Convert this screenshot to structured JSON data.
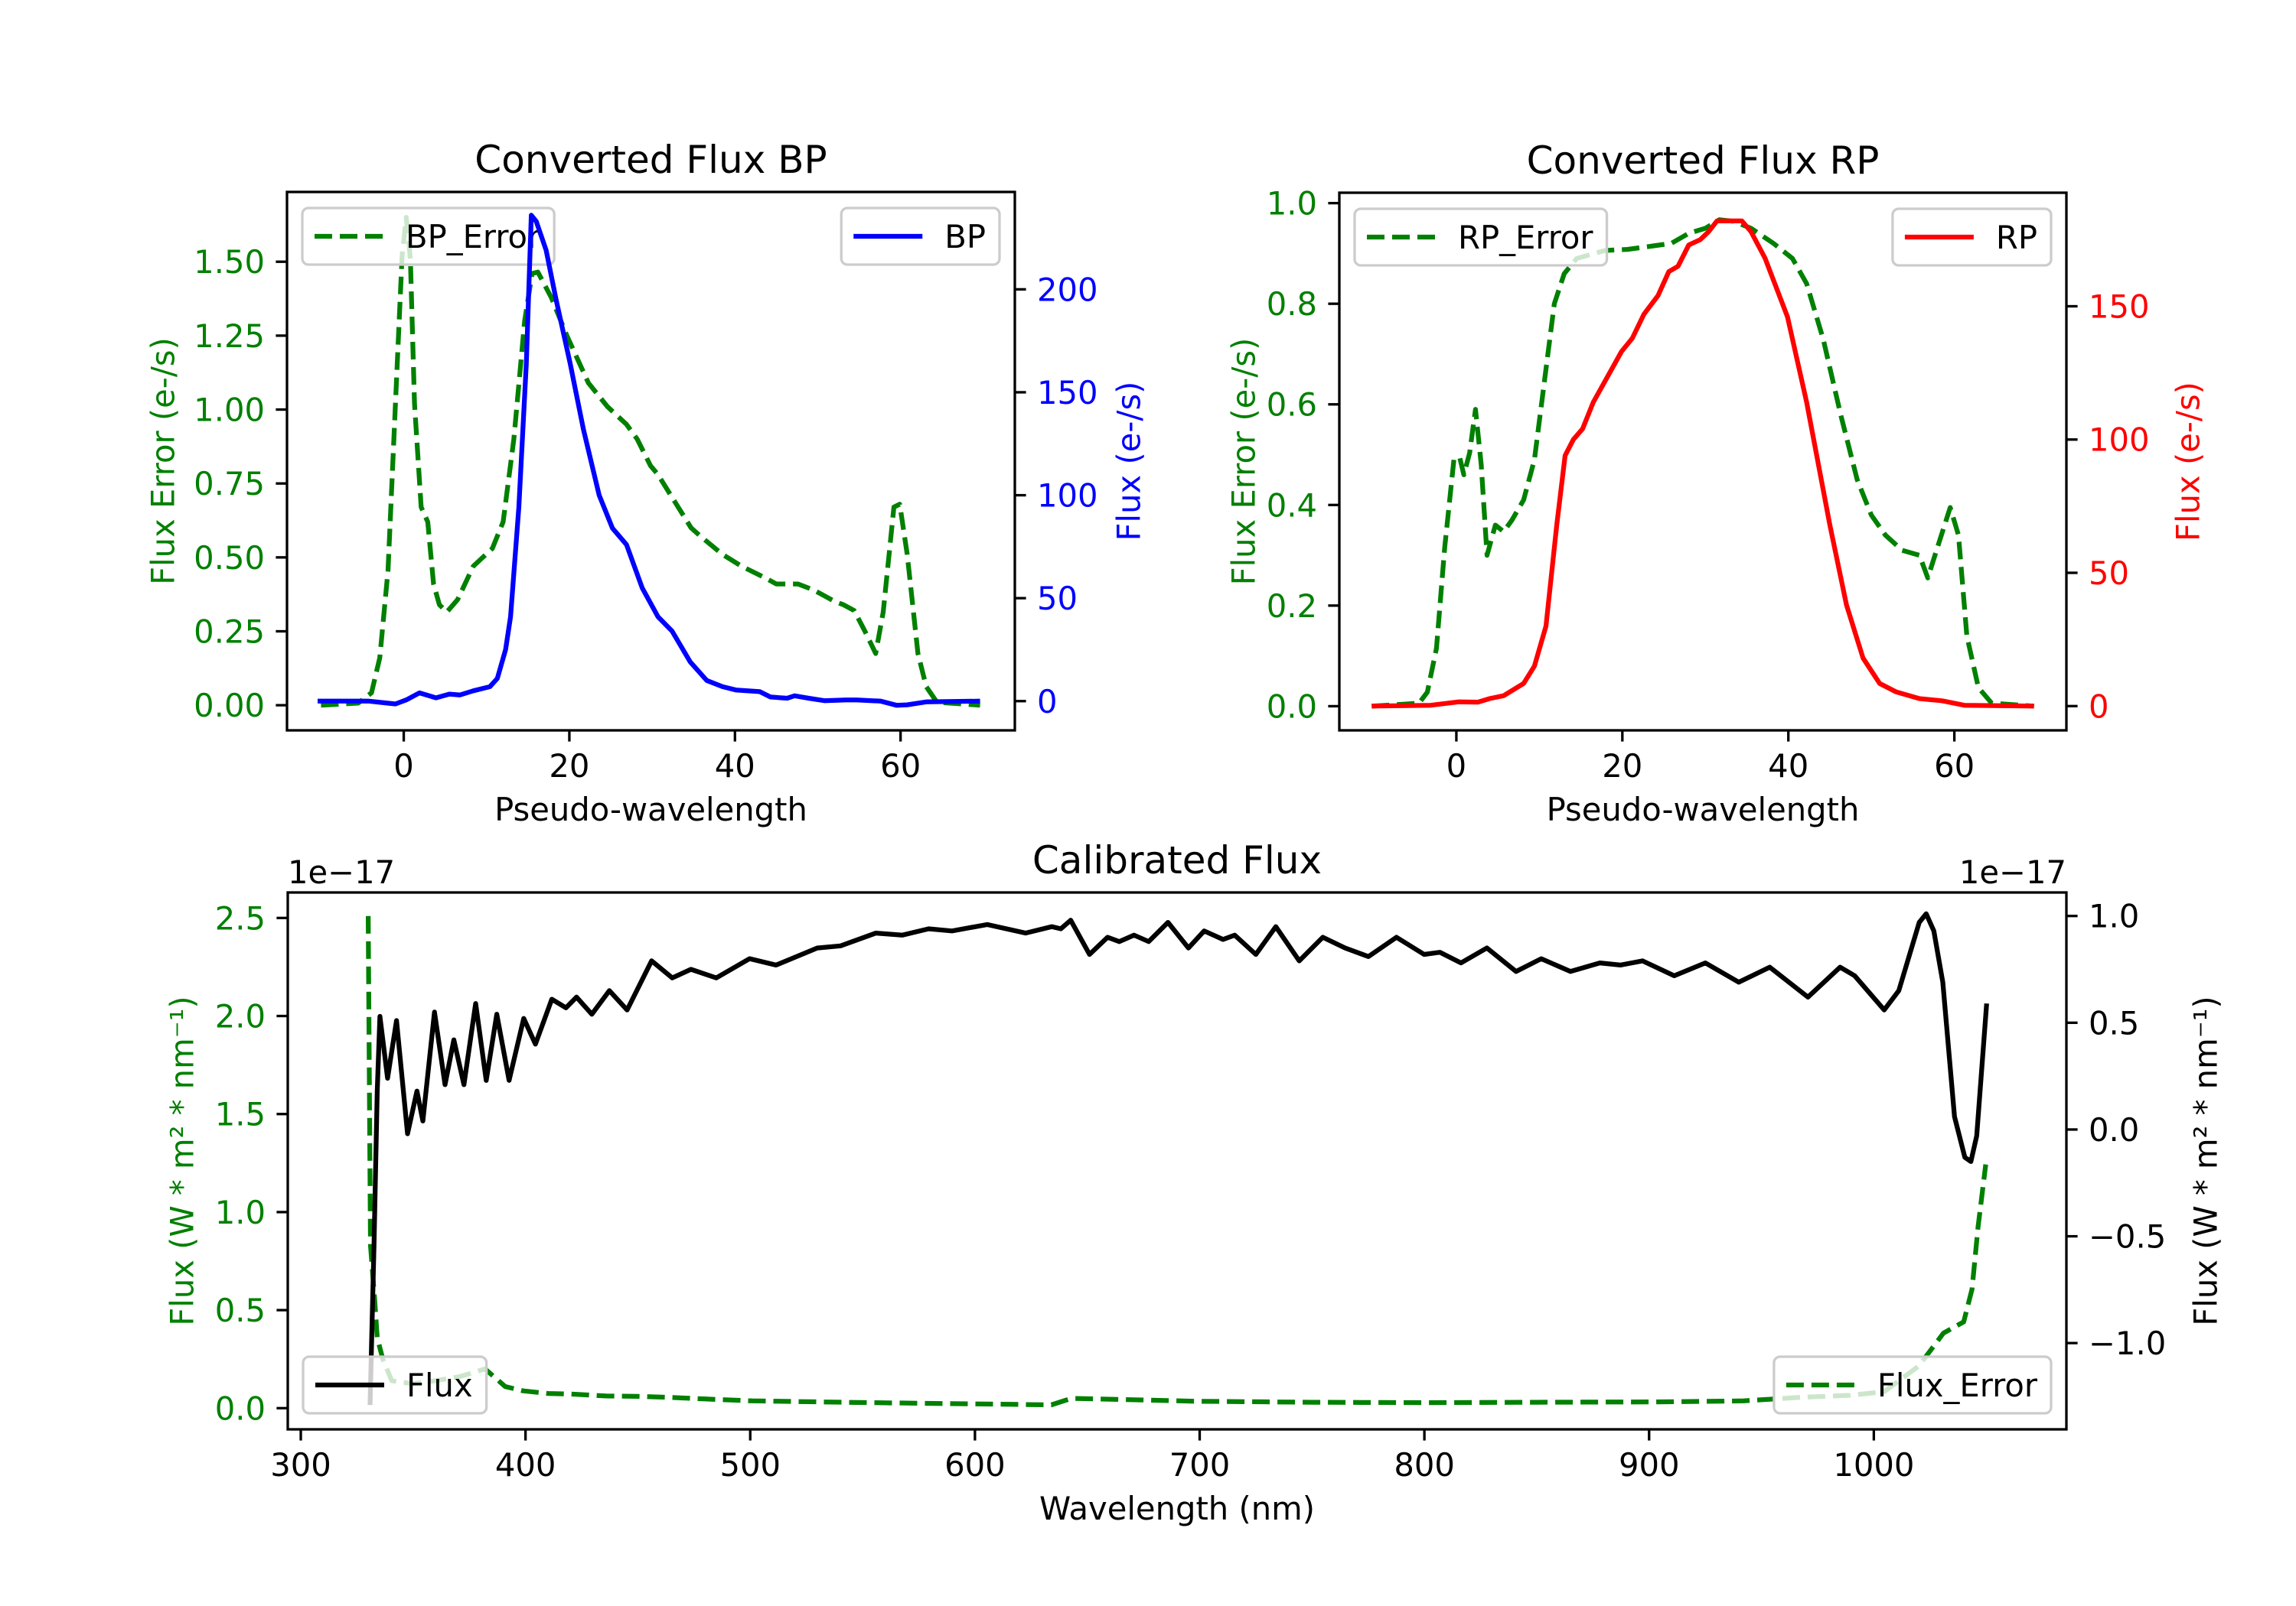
{
  "chart_data": [
    {
      "type": "line",
      "title": "Converted Flux BP",
      "xlabel": "Pseudo-wavelength",
      "xlim": [
        -14.1,
        73.8
      ],
      "xticks": [
        0,
        20,
        40,
        60
      ],
      "xtick_labels": [
        "0",
        "20",
        "40",
        "60"
      ],
      "left_axis": {
        "label": "Flux Error (e-/s)",
        "color": "#008000",
        "ylim": [
          -0.085,
          1.736
        ],
        "ticks": [
          0,
          0.25,
          0.5,
          0.75,
          1.0,
          1.25,
          1.5
        ],
        "tick_labels": [
          "0.00",
          "0.25",
          "0.50",
          "0.75",
          "1.00",
          "1.25",
          "1.50"
        ]
      },
      "right_axis": {
        "label": "Flux (e-/s)",
        "color": "#0000ff",
        "ylim": [
          -14.2,
          247.3
        ],
        "ticks": [
          0,
          50,
          100,
          150,
          200
        ],
        "tick_labels": [
          "0",
          "50",
          "100",
          "150",
          "200"
        ]
      },
      "series": [
        {
          "name": "BP_Error",
          "axis": "left",
          "color": "#008000",
          "style": "dashed",
          "legend_loc": "upper left",
          "x": [
            -10,
            -5.5,
            -3.9,
            -2.9,
            -1.9,
            -1,
            -0.2,
            0.3,
            0.8,
            1.3,
            2.1,
            2.9,
            3.6,
            4.3,
            5.2,
            6.5,
            8.4,
            10.7,
            12,
            13.3,
            14.6,
            15.5,
            16.2,
            17.8,
            19.7,
            22.3,
            24.6,
            26.9,
            28.2,
            29.8,
            30.7,
            32.7,
            34.7,
            35.9,
            38.5,
            40.8,
            43.7,
            45,
            47.6,
            49.5,
            52.1,
            53.1,
            54.4,
            55.7,
            57,
            57.9,
            59.2,
            59.9,
            60.8,
            62.1,
            63.1,
            64.4,
            69.6
          ],
          "y": [
            0,
            0.007,
            0.042,
            0.16,
            0.456,
            1.02,
            1.52,
            1.65,
            1.51,
            1.02,
            0.67,
            0.62,
            0.41,
            0.34,
            0.315,
            0.357,
            0.47,
            0.53,
            0.62,
            0.9,
            1.3,
            1.46,
            1.465,
            1.38,
            1.25,
            1.09,
            1.01,
            0.95,
            0.9,
            0.81,
            0.78,
            0.69,
            0.6,
            0.57,
            0.51,
            0.47,
            0.43,
            0.41,
            0.41,
            0.39,
            0.35,
            0.34,
            0.32,
            0.25,
            0.175,
            0.315,
            0.67,
            0.68,
            0.51,
            0.175,
            0.063,
            0.01,
            0
          ]
        },
        {
          "name": "BP",
          "axis": "right",
          "color": "#0000ff",
          "style": "solid",
          "legend_loc": "upper right",
          "x": [
            -10.4,
            -4.2,
            -1,
            0.3,
            1.9,
            3.9,
            5.5,
            6.8,
            8.4,
            10.4,
            11.3,
            12.3,
            12.9,
            13.9,
            14.8,
            15.4,
            16,
            17.2,
            18.4,
            20.1,
            21.7,
            23.6,
            25.2,
            26.9,
            28.8,
            30.7,
            32.4,
            34.6,
            36.6,
            38.5,
            40.1,
            43,
            44.3,
            46.3,
            47.2,
            48.9,
            50.8,
            53.4,
            54.7,
            57.6,
            59.5,
            60.8,
            63.1,
            69.6
          ],
          "y": [
            0,
            0,
            -1.4,
            0.6,
            4,
            1.6,
            3.4,
            3,
            5,
            7,
            11,
            25,
            41,
            94,
            164,
            236,
            233,
            219,
            195,
            164,
            132,
            100,
            84,
            76,
            55,
            41,
            34,
            19,
            10,
            7,
            5.4,
            4.6,
            2,
            1.4,
            2.6,
            1.4,
            0.2,
            0.6,
            0.6,
            0,
            -2,
            -1.8,
            -0.4,
            0
          ]
        }
      ]
    },
    {
      "type": "line",
      "title": "Converted Flux RP",
      "xlabel": "Pseudo-wavelength",
      "xlim": [
        -14.1,
        73.5
      ],
      "xticks": [
        0,
        20,
        40,
        60
      ],
      "xtick_labels": [
        "0",
        "20",
        "40",
        "60"
      ],
      "left_axis": {
        "label": "Flux Error (e-/s)",
        "color": "#008000",
        "ylim": [
          -0.048,
          1.0207
        ],
        "ticks": [
          0,
          0.2,
          0.4,
          0.6,
          0.8,
          1.0
        ],
        "tick_labels": [
          "0.0",
          "0.2",
          "0.4",
          "0.6",
          "0.8",
          "1.0"
        ]
      },
      "right_axis": {
        "label": "Flux (e-/s)",
        "color": "#ff0000",
        "ylim": [
          -9.1,
          192.6
        ],
        "ticks": [
          0,
          50,
          100,
          150
        ],
        "tick_labels": [
          "0",
          "50",
          "100",
          "150"
        ]
      },
      "series": [
        {
          "name": "RP_Error",
          "axis": "left",
          "color": "#008000",
          "style": "dashed",
          "legend_loc": "upper left",
          "x": [
            -10.2,
            -4.5,
            -3.5,
            -2.4,
            -1.4,
            -0.3,
            0.4,
            0.9,
            1.6,
            2.3,
            3,
            3.7,
            4.7,
            5.7,
            6.7,
            8.1,
            9.4,
            10.8,
            11.8,
            13,
            14.5,
            17.9,
            20.6,
            23.3,
            25.9,
            28,
            30,
            31.7,
            33.4,
            35.5,
            38.2,
            40.5,
            42.2,
            44.2,
            46.3,
            48.3,
            50,
            51.7,
            53.7,
            55.8,
            56.8,
            57.8,
            59.5,
            60.5,
            61.5,
            62.9,
            64.5,
            69.6
          ],
          "y": [
            0,
            0.006,
            0.028,
            0.115,
            0.316,
            0.49,
            0.495,
            0.46,
            0.504,
            0.59,
            0.48,
            0.3,
            0.36,
            0.347,
            0.37,
            0.41,
            0.49,
            0.67,
            0.8,
            0.86,
            0.89,
            0.906,
            0.908,
            0.914,
            0.92,
            0.94,
            0.95,
            0.967,
            0.964,
            0.95,
            0.92,
            0.89,
            0.84,
            0.73,
            0.58,
            0.45,
            0.38,
            0.34,
            0.31,
            0.3,
            0.255,
            0.307,
            0.395,
            0.34,
            0.14,
            0.037,
            0.006,
            0
          ]
        },
        {
          "name": "RP",
          "axis": "right",
          "color": "#ff0000",
          "style": "solid",
          "legend_loc": "upper right",
          "x": [
            -10.2,
            -3.1,
            0.3,
            2.6,
            4,
            5.7,
            8.1,
            9.4,
            10.8,
            12.1,
            13.1,
            14.1,
            15.2,
            16.5,
            19.9,
            21.2,
            22.6,
            24.3,
            25.6,
            26.7,
            28,
            29.4,
            30.4,
            31.4,
            33.1,
            34.4,
            35.5,
            37.2,
            39.9,
            42.2,
            45,
            47,
            49,
            51,
            53,
            55.8,
            58.5,
            61.2,
            69.6
          ],
          "y": [
            0,
            0.3,
            1.6,
            1.5,
            2.8,
            3.9,
            8.5,
            15,
            30,
            68,
            94,
            100,
            104,
            114,
            133,
            138,
            147,
            154,
            163,
            165,
            173,
            175,
            178,
            182,
            182,
            182,
            178,
            168,
            146,
            114,
            68,
            38,
            18,
            8.5,
            5.3,
            2.8,
            2,
            0.3,
            0
          ]
        }
      ]
    },
    {
      "type": "line",
      "title": "Calibrated Flux",
      "xlabel": "Wavelength (nm)",
      "xlim": [
        294.2,
        1085.7
      ],
      "xticks": [
        300,
        400,
        500,
        600,
        700,
        800,
        900,
        1000
      ],
      "xtick_labels": [
        "300",
        "400",
        "500",
        "600",
        "700",
        "800",
        "900",
        "1000"
      ],
      "left_axis": {
        "label": "Flux (W * m² * nm⁻¹)",
        "color": "#008000",
        "offset_text": "1e−17",
        "ylim": [
          -0.108,
          2.63
        ],
        "ticks": [
          0,
          0.5,
          1.0,
          1.5,
          2.0,
          2.5
        ],
        "tick_labels": [
          "0.0",
          "0.5",
          "1.0",
          "1.5",
          "2.0",
          "2.5"
        ]
      },
      "right_axis": {
        "label": "Flux (W * m² * nm⁻¹)",
        "color": "#000000",
        "offset_text": "1e−17",
        "ylim": [
          -1.404,
          1.11
        ],
        "ticks": [
          -1.0,
          -0.5,
          0,
          0.5,
          1.0
        ],
        "tick_labels": [
          "−1.0",
          "−0.5",
          "0.0",
          "0.5",
          "1.0"
        ]
      },
      "series": [
        {
          "name": "Flux_Error",
          "axis": "left",
          "color": "#008000",
          "style": "dashed",
          "legend_loc": "lower right",
          "x": [
            330,
            331,
            332.9,
            334,
            336.5,
            340.5,
            349.6,
            360,
            370.5,
            382,
            391,
            399,
            410,
            420,
            436,
            450,
            462,
            480,
            501,
            553,
            600,
            634,
            643,
            699,
            750,
            799,
            850,
            903,
            942,
            968,
            989,
            1004.6,
            1020,
            1031,
            1040,
            1043.7,
            1046.4,
            1049.8
          ],
          "y": [
            2.51,
            0.83,
            0.55,
            0.36,
            0.25,
            0.14,
            0.125,
            0.14,
            0.16,
            0.2,
            0.11,
            0.088,
            0.075,
            0.072,
            0.062,
            0.06,
            0.056,
            0.047,
            0.037,
            0.028,
            0.022,
            0.017,
            0.05,
            0.035,
            0.03,
            0.028,
            0.03,
            0.032,
            0.037,
            0.056,
            0.065,
            0.084,
            0.215,
            0.383,
            0.44,
            0.607,
            0.925,
            1.243
          ]
        },
        {
          "name": "Flux",
          "axis": "right",
          "color": "#000000",
          "style": "solid",
          "legend_loc": "lower left",
          "x": [
            330.8,
            332.6,
            334,
            335.2,
            338.6,
            342.6,
            347.5,
            351.7,
            354.3,
            359.5,
            364.2,
            368.1,
            372.6,
            377.8,
            382.5,
            387.2,
            392.7,
            399.2,
            404.4,
            411.7,
            418,
            422.7,
            429.5,
            437.3,
            445.2,
            456.1,
            465.3,
            473.6,
            484.9,
            499.7,
            511.5,
            529.8,
            540.2,
            555.9,
            567.6,
            579.4,
            589.8,
            605.5,
            622.5,
            634.2,
            638.2,
            642.6,
            651,
            659,
            664.2,
            670.8,
            677.3,
            685.9,
            695,
            702,
            710.4,
            715.6,
            725,
            733.9,
            744.3,
            754.8,
            764.7,
            775.1,
            787.6,
            799.9,
            806.9,
            816.3,
            827.8,
            840.8,
            852,
            865,
            878.1,
            887.2,
            897.1,
            911.2,
            925,
            939.9,
            953.7,
            970.7,
            985,
            991.5,
            1004.6,
            1011.1,
            1020.2,
            1023.3,
            1026.7,
            1030.7,
            1035.9,
            1040.5,
            1043.2,
            1045.8,
            1050.2
          ],
          "y": [
            -1.29,
            -0.54,
            0.18,
            0.53,
            0.24,
            0.51,
            -0.02,
            0.18,
            0.04,
            0.55,
            0.21,
            0.42,
            0.21,
            0.59,
            0.23,
            0.54,
            0.23,
            0.52,
            0.4,
            0.61,
            0.57,
            0.62,
            0.54,
            0.65,
            0.56,
            0.79,
            0.71,
            0.75,
            0.71,
            0.8,
            0.77,
            0.85,
            0.86,
            0.92,
            0.91,
            0.94,
            0.93,
            0.96,
            0.92,
            0.95,
            0.94,
            0.98,
            0.82,
            0.9,
            0.88,
            0.91,
            0.88,
            0.97,
            0.85,
            0.93,
            0.89,
            0.91,
            0.82,
            0.95,
            0.79,
            0.9,
            0.85,
            0.81,
            0.9,
            0.82,
            0.83,
            0.78,
            0.85,
            0.74,
            0.8,
            0.74,
            0.78,
            0.77,
            0.79,
            0.72,
            0.78,
            0.69,
            0.76,
            0.62,
            0.76,
            0.72,
            0.56,
            0.65,
            0.97,
            1.01,
            0.93,
            0.69,
            0.06,
            -0.13,
            -0.15,
            -0.03,
            0.59
          ]
        }
      ]
    }
  ]
}
